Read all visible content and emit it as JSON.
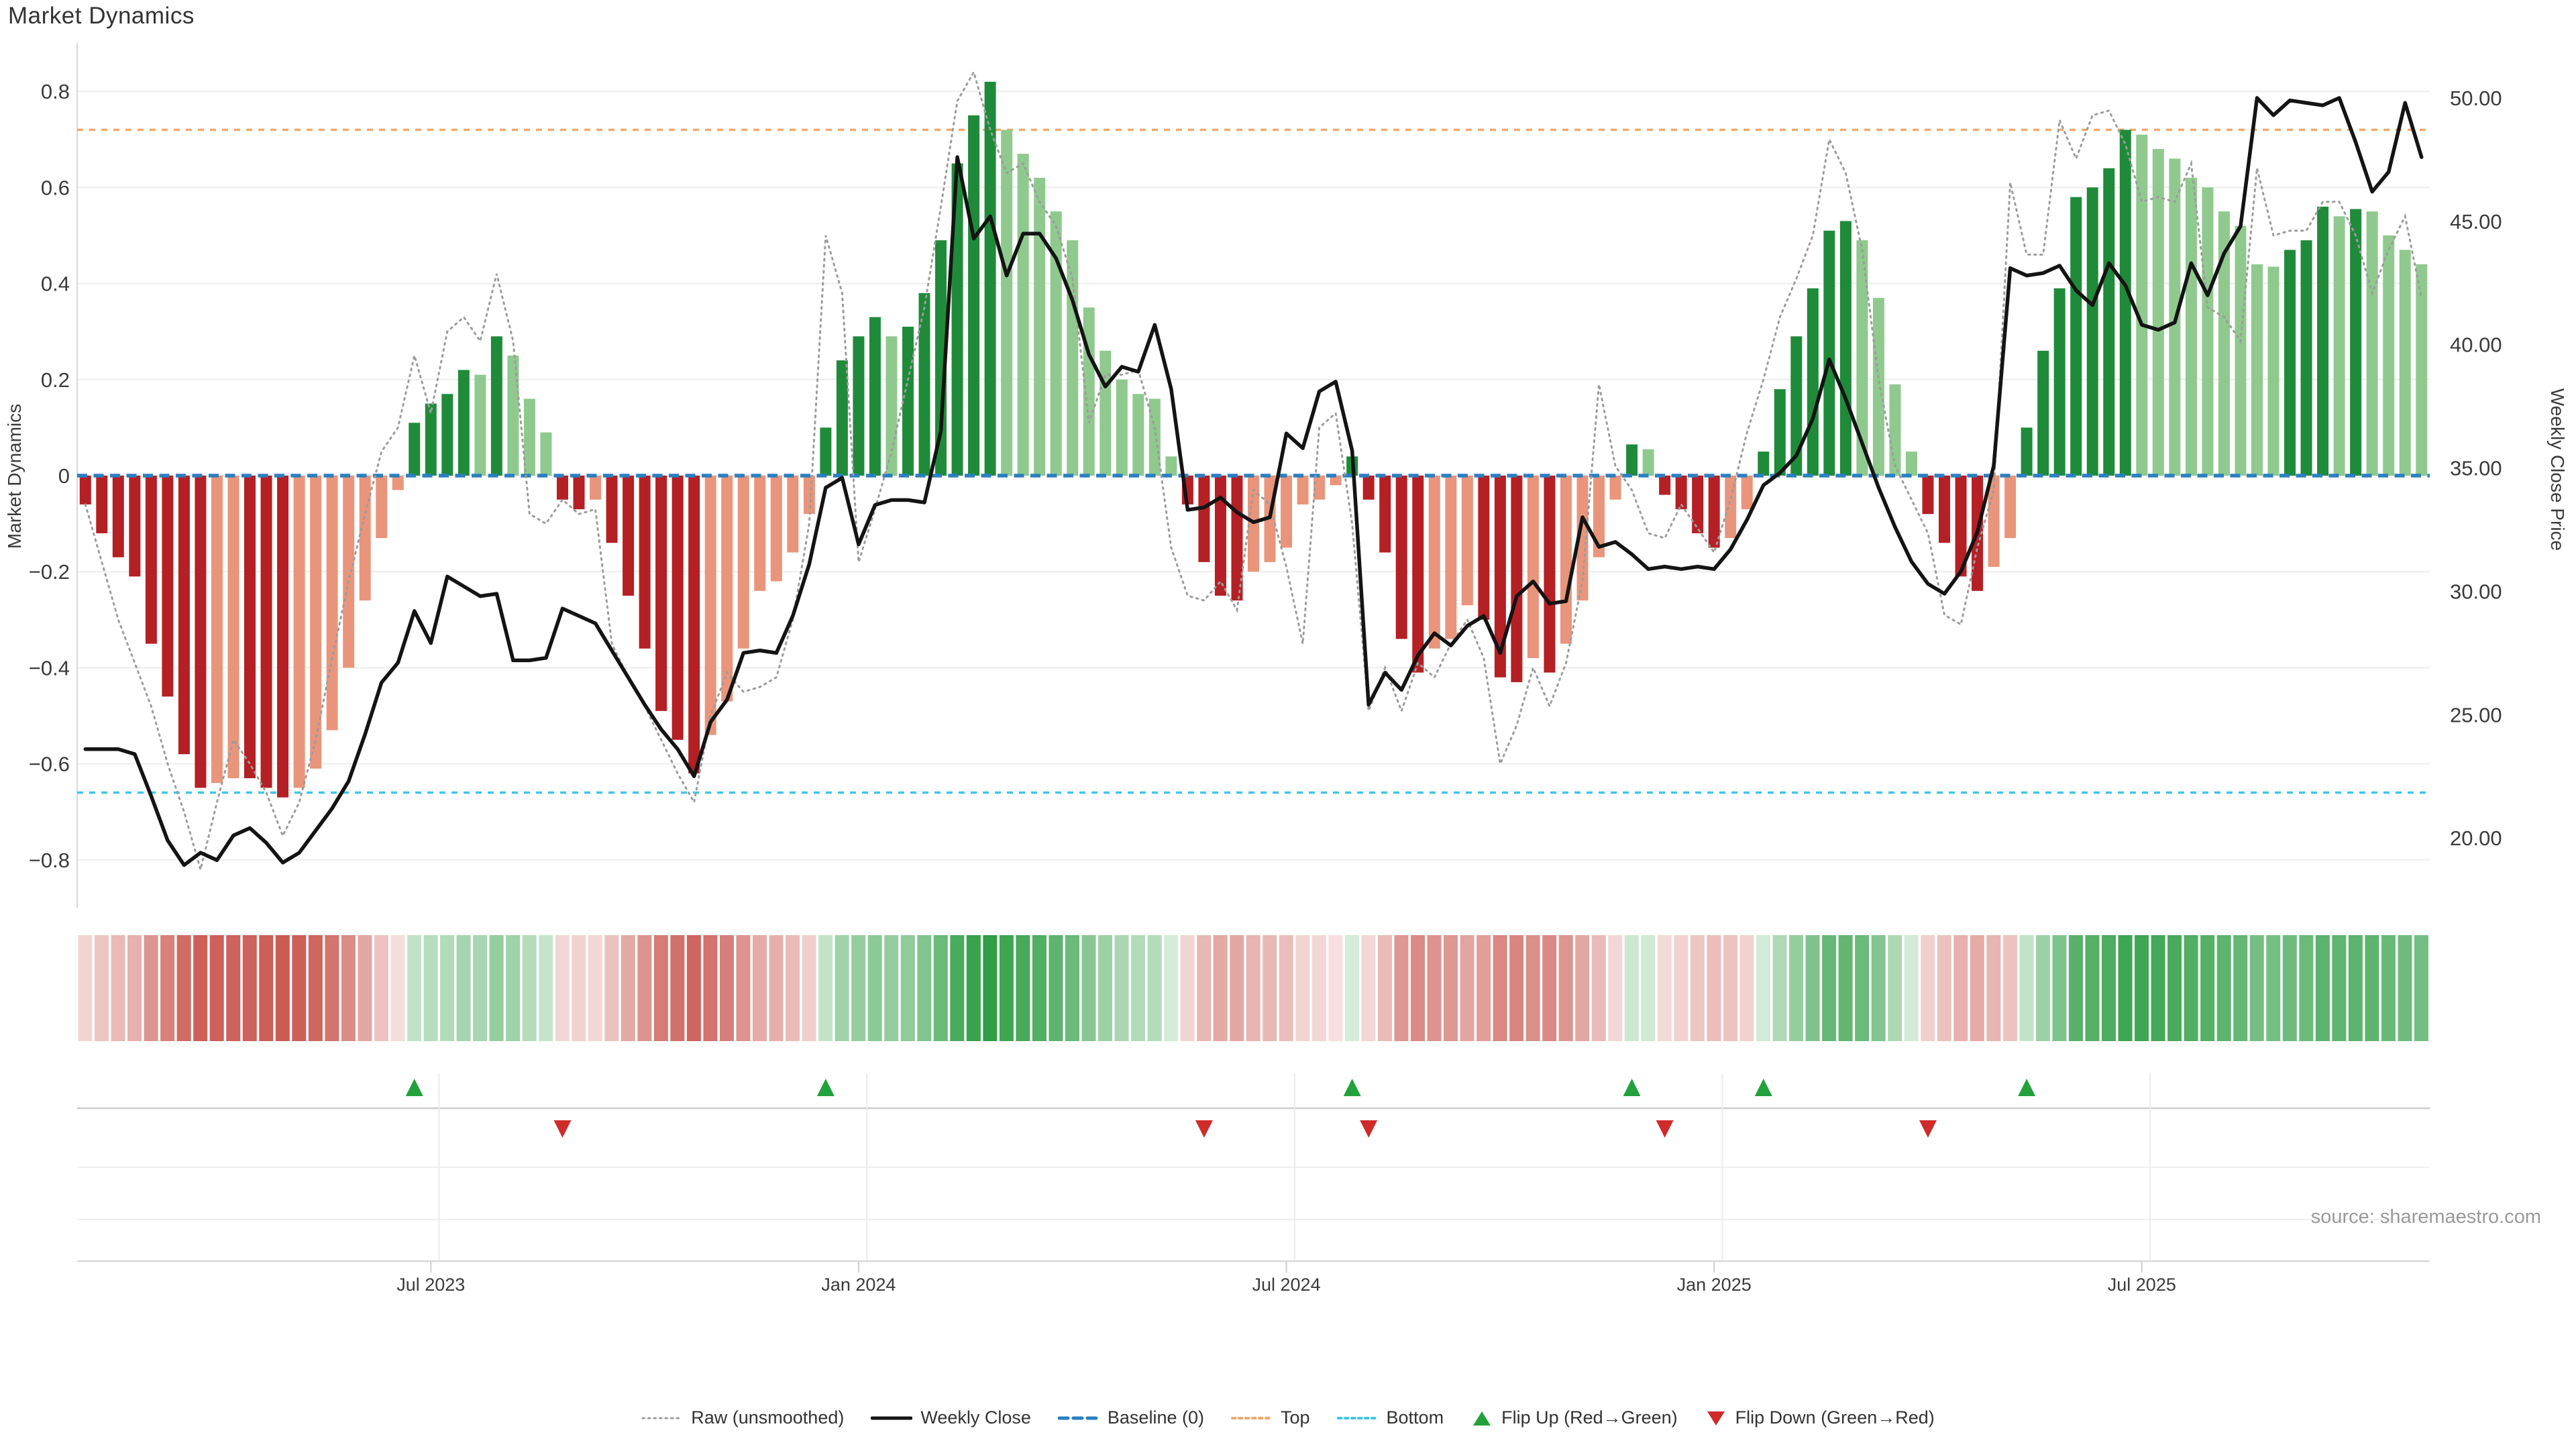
{
  "title": "Market Dynamics",
  "source": "source: sharemaestro.com",
  "left_axis": {
    "label": "Market Dynamics",
    "tick_labels": [
      "0.8",
      "0.6",
      "0.4",
      "0.2",
      "0",
      "−0.2",
      "−0.4",
      "−0.6",
      "−0.8"
    ]
  },
  "right_axis": {
    "label": "Weekly Close Price",
    "tick_labels": [
      "50.00",
      "45.00",
      "40.00",
      "35.00",
      "30.00",
      "25.00",
      "20.00"
    ]
  },
  "legend": [
    {
      "label": "Raw (unsmoothed)",
      "type": "raw"
    },
    {
      "label": "Weekly Close",
      "type": "close"
    },
    {
      "label": "Baseline (0)",
      "type": "baseline"
    },
    {
      "label": "Top",
      "type": "top"
    },
    {
      "label": "Bottom",
      "type": "bottom"
    },
    {
      "label": "Flip Up (Red→Green)",
      "type": "flip_up"
    },
    {
      "label": "Flip Down (Green→Red)",
      "type": "flip_down"
    }
  ],
  "chart_data": {
    "type": "combo",
    "title": "Market Dynamics",
    "n_weeks": 143,
    "x_tick_labels": [
      "Jul 2023",
      "Jan 2024",
      "Jul 2024",
      "Jan 2025",
      "Jul 2025"
    ],
    "x_tick_weeks": [
      21,
      47,
      73,
      99,
      125
    ],
    "left_ylim": [
      -0.9,
      0.9
    ],
    "right_ylim": [
      17.2,
      52.3
    ],
    "baseline": 0,
    "top": 0.72,
    "bottom": -0.66,
    "smoothed": [
      -0.06,
      -0.12,
      -0.17,
      -0.21,
      -0.35,
      -0.46,
      -0.58,
      -0.65,
      -0.64,
      -0.63,
      -0.63,
      -0.65,
      -0.67,
      -0.65,
      -0.61,
      -0.53,
      -0.4,
      -0.26,
      -0.13,
      -0.03,
      0.11,
      0.15,
      0.17,
      0.22,
      0.21,
      0.29,
      0.25,
      0.16,
      0.09,
      -0.05,
      -0.07,
      -0.05,
      -0.14,
      -0.25,
      -0.36,
      -0.49,
      -0.55,
      -0.62,
      -0.54,
      -0.47,
      -0.36,
      -0.24,
      -0.22,
      -0.16,
      -0.08,
      0.1,
      0.24,
      0.29,
      0.33,
      0.29,
      0.31,
      0.38,
      0.49,
      0.65,
      0.75,
      0.82,
      0.72,
      0.67,
      0.62,
      0.55,
      0.49,
      0.35,
      0.26,
      0.2,
      0.17,
      0.16,
      0.04,
      -0.06,
      -0.18,
      -0.25,
      -0.26,
      -0.2,
      -0.18,
      -0.15,
      -0.06,
      -0.05,
      -0.02,
      0.04,
      -0.05,
      -0.16,
      -0.34,
      -0.41,
      -0.36,
      -0.34,
      -0.27,
      -0.3,
      -0.42,
      -0.43,
      -0.38,
      -0.41,
      -0.35,
      -0.26,
      -0.17,
      -0.05,
      0.065,
      0.055,
      -0.04,
      -0.07,
      -0.12,
      -0.15,
      -0.13,
      -0.07,
      0.05,
      0.18,
      0.29,
      0.39,
      0.51,
      0.53,
      0.49,
      0.37,
      0.19,
      0.05,
      -0.08,
      -0.14,
      -0.21,
      -0.24,
      -0.19,
      -0.13,
      0.1,
      0.26,
      0.39,
      0.58,
      0.6,
      0.64,
      0.72,
      0.71,
      0.68,
      0.66,
      0.62,
      0.6,
      0.55,
      0.52,
      0.44,
      0.435,
      0.47,
      0.49,
      0.56,
      0.54,
      0.555,
      0.55,
      0.5,
      0.47,
      0.44
    ],
    "raw": [
      -0.06,
      -0.18,
      -0.3,
      -0.39,
      -0.48,
      -0.6,
      -0.7,
      -0.82,
      -0.68,
      -0.55,
      -0.6,
      -0.66,
      -0.75,
      -0.68,
      -0.55,
      -0.38,
      -0.22,
      -0.08,
      0.05,
      0.1,
      0.25,
      0.13,
      0.3,
      0.33,
      0.28,
      0.42,
      0.28,
      -0.08,
      -0.1,
      -0.05,
      -0.08,
      -0.07,
      -0.35,
      -0.42,
      -0.48,
      -0.55,
      -0.62,
      -0.68,
      -0.5,
      -0.41,
      -0.45,
      -0.44,
      -0.42,
      -0.3,
      -0.1,
      0.5,
      0.38,
      -0.18,
      -0.07,
      0.05,
      0.2,
      0.35,
      0.56,
      0.78,
      0.84,
      0.72,
      0.63,
      0.65,
      0.57,
      0.52,
      0.41,
      0.11,
      0.21,
      0.21,
      0.22,
      0.1,
      -0.15,
      -0.25,
      -0.26,
      -0.22,
      -0.28,
      -0.03,
      -0.06,
      -0.19,
      -0.35,
      0.1,
      0.13,
      -0.1,
      -0.49,
      -0.4,
      -0.49,
      -0.39,
      -0.42,
      -0.35,
      -0.3,
      -0.38,
      -0.6,
      -0.52,
      -0.4,
      -0.48,
      -0.39,
      -0.22,
      0.19,
      0.02,
      -0.03,
      -0.12,
      -0.13,
      -0.06,
      -0.11,
      -0.16,
      -0.05,
      0.09,
      0.2,
      0.33,
      0.41,
      0.5,
      0.7,
      0.63,
      0.47,
      0.2,
      0.02,
      -0.05,
      -0.12,
      -0.29,
      -0.31,
      -0.15,
      -0.03,
      0.61,
      0.46,
      0.46,
      0.74,
      0.66,
      0.75,
      0.76,
      0.69,
      0.57,
      0.58,
      0.57,
      0.65,
      0.35,
      0.33,
      0.28,
      0.64,
      0.5,
      0.51,
      0.51,
      0.57,
      0.57,
      0.5,
      0.38,
      0.47,
      0.54,
      0.37
    ],
    "close": [
      23.6,
      23.6,
      23.6,
      23.4,
      21.7,
      19.9,
      18.9,
      19.4,
      19.1,
      20.1,
      20.4,
      19.8,
      19.0,
      19.4,
      20.3,
      21.2,
      22.3,
      24.2,
      26.3,
      27.1,
      29.2,
      27.9,
      30.6,
      30.2,
      29.8,
      29.9,
      27.2,
      27.2,
      27.3,
      29.3,
      29.0,
      28.7,
      27.6,
      26.5,
      25.4,
      24.4,
      23.6,
      22.5,
      24.7,
      25.6,
      27.5,
      27.6,
      27.5,
      29.0,
      31.1,
      34.2,
      34.6,
      31.9,
      33.5,
      33.7,
      33.7,
      33.6,
      36.5,
      47.6,
      44.3,
      45.2,
      42.8,
      44.5,
      44.5,
      43.5,
      41.8,
      39.6,
      38.3,
      39.1,
      38.9,
      40.8,
      38.2,
      33.3,
      33.4,
      33.8,
      33.2,
      32.8,
      33.0,
      36.4,
      35.8,
      38.1,
      38.5,
      35.7,
      25.4,
      26.7,
      26.0,
      27.4,
      28.3,
      27.8,
      28.6,
      29.0,
      27.5,
      29.8,
      30.4,
      29.5,
      29.6,
      33.0,
      31.8,
      32.0,
      31.5,
      30.9,
      31.0,
      30.9,
      31.0,
      30.9,
      31.7,
      32.9,
      34.3,
      34.8,
      35.5,
      37.0,
      39.4,
      37.8,
      36.0,
      34.2,
      32.6,
      31.2,
      30.3,
      29.9,
      30.8,
      32.4,
      35.1,
      43.1,
      42.8,
      42.9,
      43.2,
      42.2,
      41.6,
      43.3,
      42.4,
      40.8,
      40.6,
      40.9,
      43.3,
      42.0,
      43.7,
      44.8,
      50.0,
      49.3,
      49.9,
      49.8,
      49.7,
      50.0,
      48.2,
      46.2,
      47.0,
      49.8,
      47.6
    ],
    "flip_up_weeks": [
      20,
      45,
      77,
      94,
      102,
      118
    ],
    "flip_down_weeks": [
      29,
      68,
      78,
      96,
      112
    ],
    "colors": {
      "bar_up_strong": "#1f8b3a",
      "bar_up_weak": "#8fc98e",
      "bar_down_strong": "#b42024",
      "bar_down_weak": "#e9957b",
      "close_line": "#141414",
      "raw_line": "#9c9c9c",
      "baseline": "#2a7fc1",
      "top_line": "#efa96d",
      "bottom_line": "#3fc6e8",
      "heat_green": "#2f9e44",
      "heat_red": "#c4473f",
      "flip_up": "#22a13c",
      "flip_down": "#cf2b2b",
      "grid": "#ededed"
    }
  }
}
